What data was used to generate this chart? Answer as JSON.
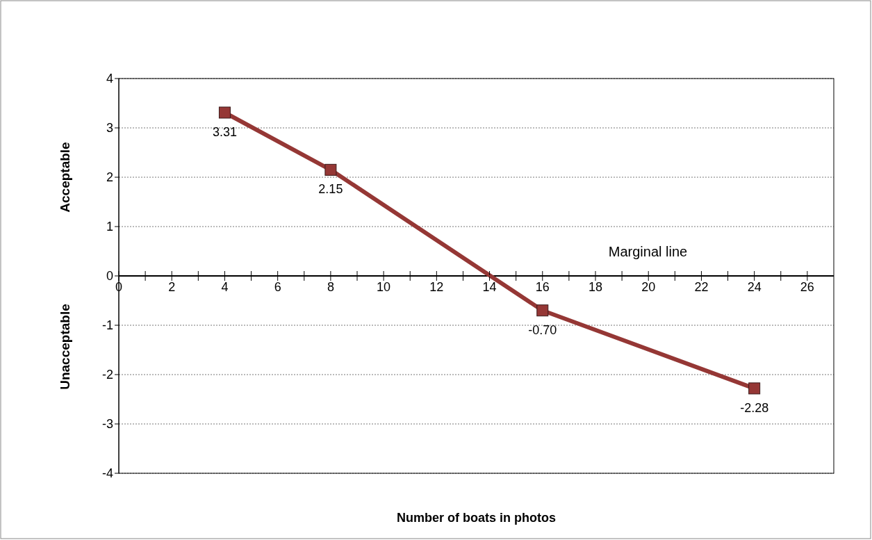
{
  "chart_data": {
    "type": "line",
    "xlabel": "Number of boats in photos",
    "ylabel": "Acceptable",
    "annotations": [
      "Unacceptable",
      "Marginal line"
    ],
    "x": [
      4,
      8,
      16,
      24
    ],
    "series": [
      {
        "color": "#953735",
        "values": [
          3.31,
          2.15,
          -0.7,
          -2.28
        ],
        "value_labels": [
          "3.31",
          "2.15",
          "-0.70",
          "-2.28"
        ]
      }
    ],
    "xlim": [
      0,
      27
    ],
    "xticks": [
      0,
      {
        "value": 1,
        "label": null
      },
      2,
      {
        "value": 3,
        "label": null
      },
      4,
      {
        "value": 5,
        "label": null
      },
      6,
      {
        "value": 7,
        "label": null
      },
      8,
      {
        "value": 9,
        "label": null
      },
      10,
      {
        "value": 11,
        "label": null
      },
      12,
      {
        "value": 13,
        "label": null
      },
      14,
      {
        "value": 15,
        "label": null
      },
      16,
      {
        "value": 17,
        "label": null
      },
      18,
      {
        "value": 19,
        "label": null
      },
      20,
      {
        "value": 21,
        "label": null
      },
      22,
      {
        "value": 23,
        "label": null
      },
      24,
      {
        "value": 25,
        "label": null
      },
      26
    ],
    "ylim": [
      -4,
      4
    ],
    "yticks": [
      -4,
      -3,
      -2,
      -1,
      0,
      1,
      2,
      3,
      4
    ],
    "grid": "y",
    "marker": "square",
    "line_style": "solid"
  }
}
